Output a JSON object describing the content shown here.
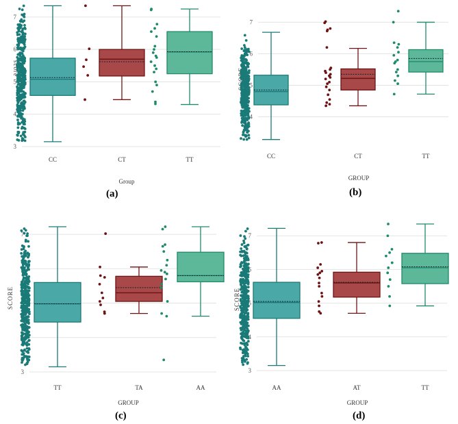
{
  "colors": {
    "teal": "#4aa9a6",
    "teal_dark": "#1a7a77",
    "red": "#a84848",
    "red_dark": "#6e1313",
    "green": "#5cb898",
    "green_dark": "#1f8a6c",
    "grid": "#e3e3e3",
    "tick_text": "#555555"
  },
  "chart_data": [
    {
      "type": "box",
      "panel_label": "(a)",
      "xlabel": "Group",
      "ylabel": "score",
      "ylabel_rotated_180": true,
      "ylim": [
        3,
        7.4
      ],
      "yticks": [
        3,
        4,
        5,
        6,
        7
      ],
      "ytick_labels": [
        "3",
        "4",
        "5",
        "6",
        "7"
      ],
      "categories": [
        "CC",
        "CT",
        "TT"
      ],
      "series": [
        {
          "name": "CC",
          "color": "teal",
          "q1": 4.58,
          "median": 5.08,
          "mean": 5.13,
          "q3": 5.73,
          "whisker_low": 3.15,
          "whisker_high": 7.35,
          "n_points": 420
        },
        {
          "name": "CT",
          "color": "red",
          "q1": 5.18,
          "median": 5.7,
          "mean": 5.62,
          "q3": 6.0,
          "whisker_low": 4.45,
          "whisker_high": 7.35,
          "points": [
            7.35,
            6.02,
            5.68,
            5.47,
            5.2,
            4.45
          ]
        },
        {
          "name": "TT",
          "color": "green",
          "q1": 5.25,
          "median": 5.92,
          "mean": 5.93,
          "q3": 6.55,
          "whisker_low": 4.3,
          "whisker_high": 7.25,
          "points": [
            7.25,
            7.22,
            6.78,
            6.65,
            6.55,
            6.4,
            6.1,
            6.0,
            5.9,
            5.8,
            5.75,
            5.62,
            5.5,
            5.4,
            5.3,
            5.0,
            4.9,
            4.7,
            4.38,
            4.32
          ]
        }
      ]
    },
    {
      "type": "box",
      "panel_label": "(b)",
      "xlabel": "GROUP",
      "ylabel": "SCORE",
      "ylabel_rotated_180": false,
      "ylim": [
        3.1,
        7.4
      ],
      "yticks": [
        4,
        5,
        6,
        7
      ],
      "ytick_labels": [
        "4",
        "5",
        "6",
        "7"
      ],
      "categories": [
        "CC",
        "CT",
        "TT"
      ],
      "series": [
        {
          "name": "CC",
          "color": "teal",
          "q1": 4.38,
          "median": 4.8,
          "mean": 4.85,
          "q3": 5.32,
          "whisker_low": 3.28,
          "whisker_high": 6.68,
          "n_points": 380
        },
        {
          "name": "CT",
          "color": "red",
          "q1": 4.85,
          "median": 5.22,
          "mean": 5.35,
          "q3": 5.52,
          "whisker_low": 4.35,
          "whisker_high": 6.17,
          "points": [
            7.02,
            6.98,
            6.8,
            6.76,
            6.72,
            6.2,
            5.55,
            5.5,
            5.45,
            5.4,
            5.35,
            5.3,
            5.25,
            5.2,
            5.1,
            5.05,
            4.95,
            4.85,
            4.7,
            4.55,
            4.45,
            4.4,
            4.35
          ]
        },
        {
          "name": "TT",
          "color": "green",
          "q1": 5.42,
          "median": 5.75,
          "mean": 5.85,
          "q3": 6.13,
          "whisker_low": 4.72,
          "whisker_high": 7.0,
          "points": [
            7.35,
            7.0,
            6.35,
            6.3,
            6.2,
            6.05,
            5.95,
            5.8,
            5.75,
            5.7,
            5.5,
            5.42,
            5.3,
            5.15,
            5.05,
            4.72
          ]
        }
      ]
    },
    {
      "type": "box",
      "panel_label": "(c)",
      "xlabel": "GROUP",
      "ylabel": "SCORE",
      "ylabel_rotated_180": false,
      "ylim": [
        3,
        7.3
      ],
      "yticks": [
        3,
        4,
        5,
        6,
        7
      ],
      "ytick_labels": [
        "3",
        "4",
        "5",
        "6",
        "7"
      ],
      "categories": [
        "TT",
        "TA",
        "AA"
      ],
      "series": [
        {
          "name": "TT",
          "color": "teal",
          "q1": 4.45,
          "median": 4.98,
          "mean": 4.98,
          "q3": 5.6,
          "whisker_low": 3.15,
          "whisker_high": 7.22,
          "n_points": 420
        },
        {
          "name": "TA",
          "color": "red",
          "q1": 5.05,
          "median": 5.3,
          "mean": 5.45,
          "q3": 5.78,
          "whisker_low": 4.7,
          "whisker_high": 6.05,
          "points": [
            7.02,
            6.05,
            5.8,
            5.75,
            5.55,
            5.3,
            5.15,
            5.05,
            4.95,
            4.75,
            4.7
          ]
        },
        {
          "name": "AA",
          "color": "green",
          "q1": 5.62,
          "median": 5.8,
          "mean": 5.8,
          "q3": 6.48,
          "whisker_low": 4.62,
          "whisker_high": 7.22,
          "points": [
            7.22,
            7.15,
            6.7,
            6.65,
            6.5,
            6.25,
            6.1,
            5.95,
            5.9,
            5.85,
            5.7,
            5.55,
            5.45,
            5.05,
            4.7,
            4.62,
            3.35
          ]
        }
      ]
    },
    {
      "type": "box",
      "panel_label": "(d)",
      "xlabel": "GROUP",
      "ylabel": "SCORE",
      "ylabel_rotated_180": false,
      "ylim": [
        3,
        7.35
      ],
      "yticks": [
        3,
        4,
        5,
        6,
        7
      ],
      "ytick_labels": [
        "3",
        "4",
        "5",
        "6",
        "7"
      ],
      "categories": [
        "AA",
        "AT",
        "TT"
      ],
      "series": [
        {
          "name": "AA",
          "color": "teal",
          "q1": 4.55,
          "median": 5.02,
          "mean": 5.05,
          "q3": 5.62,
          "whisker_low": 3.15,
          "whisker_high": 7.22,
          "n_points": 420
        },
        {
          "name": "AT",
          "color": "red",
          "q1": 5.18,
          "median": 5.6,
          "mean": 5.62,
          "q3": 5.92,
          "whisker_low": 4.7,
          "whisker_high": 6.8,
          "points": [
            6.8,
            6.78,
            6.15,
            6.05,
            5.95,
            5.9,
            5.85,
            5.75,
            5.6,
            5.5,
            5.3,
            5.2,
            5.05,
            4.92,
            4.75,
            4.7
          ]
        },
        {
          "name": "TT",
          "color": "green",
          "q1": 5.58,
          "median": 6.05,
          "mean": 6.08,
          "q3": 6.48,
          "whisker_low": 4.92,
          "whisker_high": 7.35,
          "points": [
            7.35,
            7.0,
            6.6,
            6.5,
            6.4,
            6.2,
            6.05,
            5.9,
            5.7,
            5.5,
            5.2,
            4.92
          ]
        }
      ]
    }
  ]
}
